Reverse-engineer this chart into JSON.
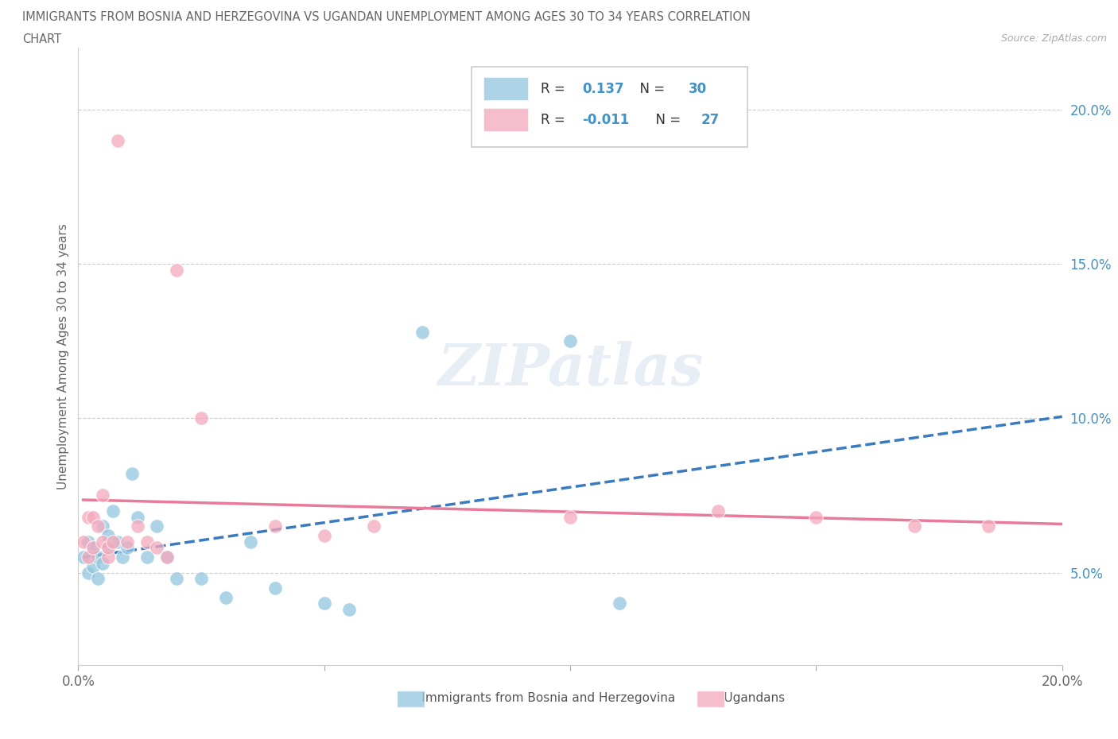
{
  "title_line1": "IMMIGRANTS FROM BOSNIA AND HERZEGOVINA VS UGANDAN UNEMPLOYMENT AMONG AGES 30 TO 34 YEARS CORRELATION",
  "title_line2": "CHART",
  "source_text": "Source: ZipAtlas.com",
  "ylabel": "Unemployment Among Ages 30 to 34 years",
  "xlim": [
    0.0,
    0.2
  ],
  "ylim": [
    0.02,
    0.22
  ],
  "yticks": [
    0.05,
    0.1,
    0.15,
    0.2
  ],
  "ytick_labels": [
    "5.0%",
    "10.0%",
    "15.0%",
    "20.0%"
  ],
  "xticks": [
    0.0,
    0.05,
    0.1,
    0.15,
    0.2
  ],
  "xtick_labels": [
    "0.0%",
    "",
    "",
    "",
    "20.0%"
  ],
  "blue_color": "#92c5de",
  "pink_color": "#f4a9bc",
  "blue_line_color": "#3a7bbf",
  "pink_line_color": "#e87a9a",
  "legend_blue_label": "Immigrants from Bosnia and Herzegovina",
  "legend_pink_label": "Ugandans",
  "R_blue": 0.137,
  "N_blue": 30,
  "R_pink": -0.011,
  "N_pink": 27,
  "blue_scatter_x": [
    0.001,
    0.002,
    0.002,
    0.003,
    0.003,
    0.004,
    0.004,
    0.005,
    0.005,
    0.006,
    0.006,
    0.007,
    0.008,
    0.009,
    0.01,
    0.011,
    0.012,
    0.014,
    0.016,
    0.018,
    0.02,
    0.025,
    0.03,
    0.035,
    0.04,
    0.05,
    0.055,
    0.07,
    0.1,
    0.11
  ],
  "blue_scatter_y": [
    0.055,
    0.06,
    0.05,
    0.058,
    0.052,
    0.055,
    0.048,
    0.065,
    0.053,
    0.058,
    0.062,
    0.07,
    0.06,
    0.055,
    0.058,
    0.082,
    0.068,
    0.055,
    0.065,
    0.055,
    0.048,
    0.048,
    0.042,
    0.06,
    0.045,
    0.04,
    0.038,
    0.128,
    0.125,
    0.04
  ],
  "pink_scatter_x": [
    0.001,
    0.002,
    0.002,
    0.003,
    0.003,
    0.004,
    0.005,
    0.005,
    0.006,
    0.006,
    0.007,
    0.008,
    0.01,
    0.012,
    0.014,
    0.016,
    0.018,
    0.02,
    0.025,
    0.04,
    0.05,
    0.06,
    0.1,
    0.13,
    0.15,
    0.17,
    0.185
  ],
  "pink_scatter_y": [
    0.06,
    0.055,
    0.068,
    0.058,
    0.068,
    0.065,
    0.075,
    0.06,
    0.055,
    0.058,
    0.06,
    0.19,
    0.06,
    0.065,
    0.06,
    0.058,
    0.055,
    0.148,
    0.1,
    0.065,
    0.062,
    0.065,
    0.068,
    0.07,
    0.068,
    0.065,
    0.065
  ]
}
